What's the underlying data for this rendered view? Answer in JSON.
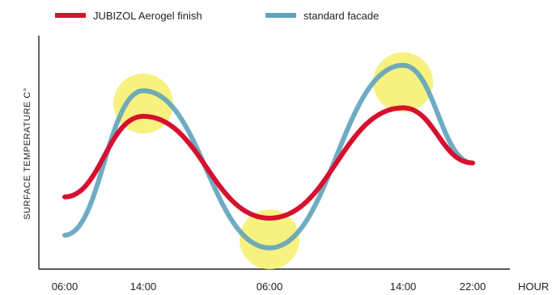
{
  "chart_data": {
    "type": "line",
    "title": "",
    "xlabel": "HOUR",
    "ylabel": "SURFACE TEMPERATURE C°",
    "x_ticks": [
      "06:00",
      "14:00",
      "06:00",
      "14:00",
      "22:00"
    ],
    "y_ticks": [],
    "grid": false,
    "legend_position": "top",
    "series": [
      {
        "name": "JUBIZOL Aerogel finish",
        "color": "#d6102f",
        "x": [
          0,
          1,
          2,
          3,
          4
        ],
        "y": [
          14,
          52,
          4,
          56,
          30
        ]
      },
      {
        "name": "standard facade",
        "color": "#5fa3bd",
        "x": [
          0,
          1,
          2,
          3,
          4
        ],
        "y": [
          -4,
          64,
          -10,
          76,
          30
        ]
      }
    ],
    "highlights": [
      {
        "x": 1,
        "y": 58,
        "color": "#f6ee6a"
      },
      {
        "x": 2,
        "y": -6,
        "color": "#f6ee6a"
      },
      {
        "x": 3,
        "y": 68,
        "color": "#f6ee6a"
      }
    ],
    "ylim": [
      -20,
      90
    ]
  }
}
